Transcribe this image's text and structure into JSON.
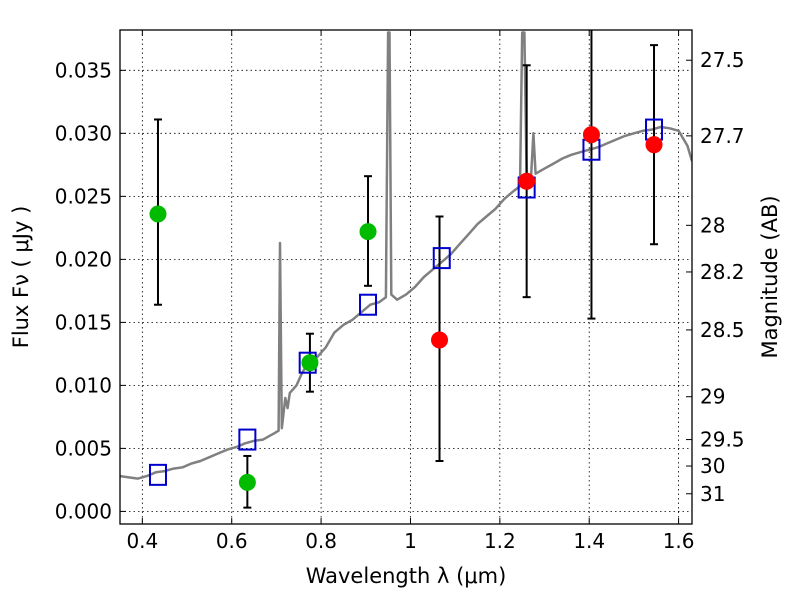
{
  "chart_data": {
    "type": "scatter",
    "xlabel": "Wavelength  λ (μm)",
    "ylabel_left": "Flux  Fν  ( μJy )",
    "ylabel_right": "Magnitude (AB)",
    "xlim": [
      0.35,
      1.63
    ],
    "ylim": [
      -0.001,
      0.0382
    ],
    "grid": true,
    "x_ticks": [
      {
        "value": 0.4,
        "label": "0.4"
      },
      {
        "value": 0.6,
        "label": "0.6"
      },
      {
        "value": 0.8,
        "label": "0.8"
      },
      {
        "value": 1.0,
        "label": "1"
      },
      {
        "value": 1.2,
        "label": "1.2"
      },
      {
        "value": 1.4,
        "label": "1.4"
      },
      {
        "value": 1.6,
        "label": "1.6"
      }
    ],
    "y_ticks": [
      {
        "value": 0.0,
        "label": "0.000"
      },
      {
        "value": 0.005,
        "label": "0.005"
      },
      {
        "value": 0.01,
        "label": "0.010"
      },
      {
        "value": 0.015,
        "label": "0.015"
      },
      {
        "value": 0.02,
        "label": "0.020"
      },
      {
        "value": 0.025,
        "label": "0.025"
      },
      {
        "value": 0.03,
        "label": "0.030"
      },
      {
        "value": 0.035,
        "label": "0.035"
      }
    ],
    "magnitude_ticks": [
      {
        "flux": 0.0358,
        "label": "27.5"
      },
      {
        "flux": 0.0298,
        "label": "27.7"
      },
      {
        "flux": 0.0227,
        "label": "28"
      },
      {
        "flux": 0.019,
        "label": "28.2"
      },
      {
        "flux": 0.0144,
        "label": "28.5"
      },
      {
        "flux": 0.0091,
        "label": "29"
      },
      {
        "flux": 0.0057,
        "label": "29.5"
      },
      {
        "flux": 0.0036,
        "label": "30"
      },
      {
        "flux": 0.0014,
        "label": "31"
      }
    ],
    "series": [
      {
        "type": "line",
        "color": "#808080",
        "points": [
          [
            0.35,
            0.0028
          ],
          [
            0.37,
            0.0027
          ],
          [
            0.39,
            0.0026
          ],
          [
            0.41,
            0.0028
          ],
          [
            0.43,
            0.0031
          ],
          [
            0.45,
            0.0032
          ],
          [
            0.47,
            0.0034
          ],
          [
            0.49,
            0.0035
          ],
          [
            0.51,
            0.0038
          ],
          [
            0.53,
            0.004
          ],
          [
            0.55,
            0.0043
          ],
          [
            0.57,
            0.0046
          ],
          [
            0.59,
            0.0049
          ],
          [
            0.61,
            0.0051
          ],
          [
            0.63,
            0.0054
          ],
          [
            0.65,
            0.0056
          ],
          [
            0.67,
            0.0057
          ],
          [
            0.685,
            0.006
          ],
          [
            0.695,
            0.0062
          ],
          [
            0.705,
            0.0064
          ],
          [
            0.708,
            0.0213
          ],
          [
            0.712,
            0.0066
          ],
          [
            0.72,
            0.009
          ],
          [
            0.725,
            0.0082
          ],
          [
            0.73,
            0.0094
          ],
          [
            0.745,
            0.01
          ],
          [
            0.755,
            0.0108
          ],
          [
            0.77,
            0.0118
          ],
          [
            0.79,
            0.0122
          ],
          [
            0.81,
            0.013
          ],
          [
            0.83,
            0.0142
          ],
          [
            0.85,
            0.0148
          ],
          [
            0.87,
            0.0152
          ],
          [
            0.89,
            0.0158
          ],
          [
            0.91,
            0.0164
          ],
          [
            0.93,
            0.0166
          ],
          [
            0.945,
            0.017
          ],
          [
            0.95,
            0.038
          ],
          [
            0.953,
            0.038
          ],
          [
            0.957,
            0.0172
          ],
          [
            0.97,
            0.0168
          ],
          [
            0.99,
            0.0172
          ],
          [
            1.01,
            0.0178
          ],
          [
            1.03,
            0.0186
          ],
          [
            1.05,
            0.0192
          ],
          [
            1.07,
            0.0198
          ],
          [
            1.09,
            0.0204
          ],
          [
            1.11,
            0.0212
          ],
          [
            1.13,
            0.022
          ],
          [
            1.15,
            0.0228
          ],
          [
            1.17,
            0.0234
          ],
          [
            1.19,
            0.024
          ],
          [
            1.21,
            0.0248
          ],
          [
            1.23,
            0.0254
          ],
          [
            1.245,
            0.0258
          ],
          [
            1.25,
            0.038
          ],
          [
            1.255,
            0.038
          ],
          [
            1.26,
            0.0262
          ],
          [
            1.27,
            0.0266
          ],
          [
            1.275,
            0.03
          ],
          [
            1.28,
            0.0268
          ],
          [
            1.3,
            0.0272
          ],
          [
            1.32,
            0.0276
          ],
          [
            1.34,
            0.028
          ],
          [
            1.36,
            0.0283
          ],
          [
            1.38,
            0.0285
          ],
          [
            1.4,
            0.0287
          ],
          [
            1.42,
            0.0289
          ],
          [
            1.44,
            0.0292
          ],
          [
            1.46,
            0.0295
          ],
          [
            1.48,
            0.0298
          ],
          [
            1.5,
            0.03
          ],
          [
            1.52,
            0.0302
          ],
          [
            1.54,
            0.0303
          ],
          [
            1.56,
            0.0305
          ],
          [
            1.58,
            0.0304
          ],
          [
            1.6,
            0.0302
          ],
          [
            1.62,
            0.029
          ],
          [
            1.63,
            0.0278
          ]
        ]
      },
      {
        "type": "markers",
        "marker": "square",
        "color": "#0000cc",
        "points": [
          [
            0.435,
            0.0029
          ],
          [
            0.635,
            0.0057
          ],
          [
            0.77,
            0.0118
          ],
          [
            0.905,
            0.0164
          ],
          [
            1.07,
            0.0201
          ],
          [
            1.26,
            0.0257
          ],
          [
            1.405,
            0.0287
          ],
          [
            1.545,
            0.0303
          ]
        ]
      },
      {
        "type": "markers",
        "marker": "circle",
        "color": "#00bb00",
        "points": [
          {
            "x": 0.435,
            "y": 0.0236,
            "lo": 0.0164,
            "hi": 0.0311
          },
          {
            "x": 0.635,
            "y": 0.0023,
            "lo": 0.0003,
            "hi": 0.0044
          },
          {
            "x": 0.775,
            "y": 0.0118,
            "lo": 0.0095,
            "hi": 0.0141
          },
          {
            "x": 0.905,
            "y": 0.0222,
            "lo": 0.0179,
            "hi": 0.0266
          }
        ]
      },
      {
        "type": "markers",
        "marker": "circle",
        "color": "#ff0000",
        "points": [
          {
            "x": 1.065,
            "y": 0.0136,
            "lo": 0.004,
            "hi": 0.0234
          },
          {
            "x": 1.26,
            "y": 0.0262,
            "lo": 0.017,
            "hi": 0.0354
          },
          {
            "x": 1.405,
            "y": 0.0299,
            "lo": 0.0153,
            "hi": 0.0385
          },
          {
            "x": 1.545,
            "y": 0.0291,
            "lo": 0.0212,
            "hi": 0.037
          }
        ]
      }
    ]
  }
}
